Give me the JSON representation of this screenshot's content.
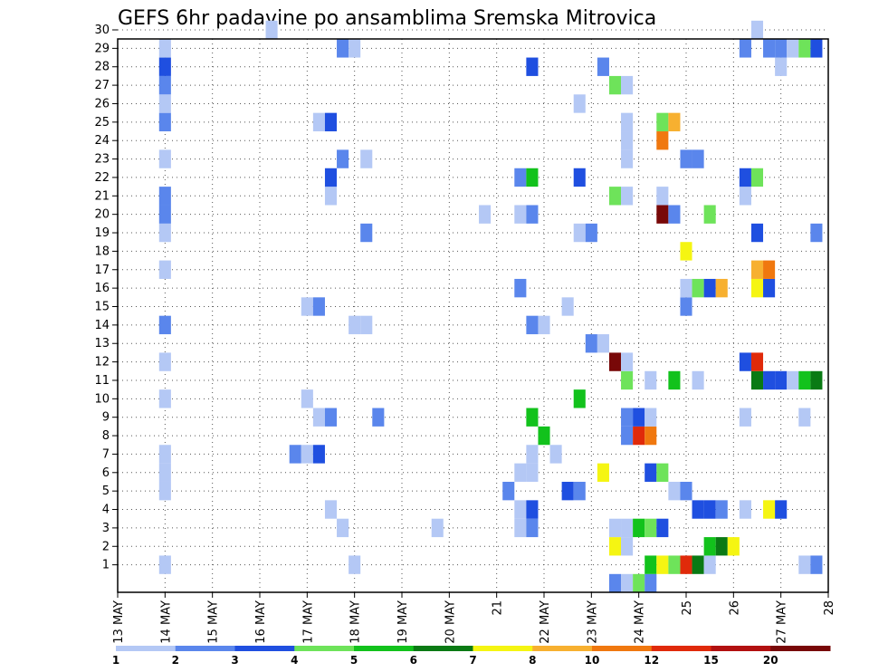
{
  "chart_data": {
    "type": "heatmap",
    "title": "GEFS 6hr padavine po ansamblima Sremska Mitrovica",
    "y_members": [
      1,
      2,
      3,
      4,
      5,
      6,
      7,
      8,
      9,
      10,
      11,
      12,
      13,
      14,
      15,
      16,
      17,
      18,
      19,
      20,
      21,
      22,
      23,
      24,
      25,
      26,
      27,
      28,
      29,
      30
    ],
    "y_tick_labels": [
      "1",
      "2",
      "3",
      "4",
      "5",
      "6",
      "7",
      "8",
      "9",
      "10",
      "11",
      "12",
      "13",
      "14",
      "15",
      "16",
      "17",
      "18",
      "19",
      "20",
      "21",
      "22",
      "23",
      "24",
      "25",
      "26",
      "27",
      "28",
      "29",
      "30"
    ],
    "x_tick_labels": [
      "13 MAY",
      "14 MAY",
      "15 MAY",
      "16 MAY",
      "17 MAY",
      "18 MAY",
      "19 MAY",
      "20 MAY",
      "21",
      "22 MAY",
      "23 MAY",
      "24 MAY",
      "25",
      "26",
      "27 MAY",
      "28"
    ],
    "x_days": [
      13,
      14,
      15,
      16,
      17,
      18,
      19,
      20,
      21,
      22,
      23,
      24,
      25,
      26,
      27,
      28
    ],
    "colorbar": {
      "labels": [
        "1",
        "2",
        "3",
        "4",
        "5",
        "6",
        "7",
        "8",
        "10",
        "12",
        "15",
        "20"
      ],
      "colors": [
        "#b4c8f5",
        "#5a86ec",
        "#1f4fe0",
        "#6ee35a",
        "#12c21c",
        "#0a7a14",
        "#f5f512",
        "#f7b030",
        "#f0780f",
        "#e02a0a",
        "#b21010",
        "#780808"
      ]
    },
    "cells": [
      {
        "day": 14.0,
        "member": 1,
        "bin": 0
      },
      {
        "day": 14.0,
        "member": 5,
        "bin": 0
      },
      {
        "day": 14.0,
        "member": 6,
        "bin": 0
      },
      {
        "day": 14.0,
        "member": 7,
        "bin": 0
      },
      {
        "day": 14.0,
        "member": 10,
        "bin": 0
      },
      {
        "day": 14.0,
        "member": 12,
        "bin": 0
      },
      {
        "day": 14.0,
        "member": 14,
        "bin": 1
      },
      {
        "day": 14.0,
        "member": 17,
        "bin": 0
      },
      {
        "day": 14.0,
        "member": 19,
        "bin": 0
      },
      {
        "day": 14.0,
        "member": 20,
        "bin": 1
      },
      {
        "day": 14.0,
        "member": 21,
        "bin": 1
      },
      {
        "day": 14.0,
        "member": 23,
        "bin": 0
      },
      {
        "day": 14.0,
        "member": 25,
        "bin": 1
      },
      {
        "day": 14.0,
        "member": 26,
        "bin": 0
      },
      {
        "day": 14.0,
        "member": 27,
        "bin": 1
      },
      {
        "day": 14.0,
        "member": 28,
        "bin": 2
      },
      {
        "day": 14.0,
        "member": 29,
        "bin": 0
      },
      {
        "day": 16.25,
        "member": 30,
        "bin": 0
      },
      {
        "day": 16.75,
        "member": 7,
        "bin": 1
      },
      {
        "day": 17.0,
        "member": 7,
        "bin": 0
      },
      {
        "day": 17.25,
        "member": 7,
        "bin": 2
      },
      {
        "day": 17.0,
        "member": 10,
        "bin": 0
      },
      {
        "day": 17.25,
        "member": 9,
        "bin": 0
      },
      {
        "day": 17.5,
        "member": 9,
        "bin": 1
      },
      {
        "day": 17.0,
        "member": 15,
        "bin": 0
      },
      {
        "day": 17.25,
        "member": 15,
        "bin": 1
      },
      {
        "day": 17.25,
        "member": 25,
        "bin": 0
      },
      {
        "day": 17.5,
        "member": 25,
        "bin": 2
      },
      {
        "day": 17.5,
        "member": 4,
        "bin": 0
      },
      {
        "day": 17.5,
        "member": 21,
        "bin": 0
      },
      {
        "day": 17.5,
        "member": 22,
        "bin": 2
      },
      {
        "day": 17.75,
        "member": 3,
        "bin": 0
      },
      {
        "day": 17.75,
        "member": 23,
        "bin": 1
      },
      {
        "day": 17.75,
        "member": 29,
        "bin": 1
      },
      {
        "day": 18.0,
        "member": 29,
        "bin": 0
      },
      {
        "day": 18.0,
        "member": 1,
        "bin": 0
      },
      {
        "day": 18.0,
        "member": 14,
        "bin": 0
      },
      {
        "day": 18.25,
        "member": 14,
        "bin": 0
      },
      {
        "day": 18.25,
        "member": 19,
        "bin": 1
      },
      {
        "day": 18.25,
        "member": 23,
        "bin": 0
      },
      {
        "day": 18.5,
        "member": 9,
        "bin": 1
      },
      {
        "day": 19.75,
        "member": 3,
        "bin": 0
      },
      {
        "day": 20.75,
        "member": 20,
        "bin": 0
      },
      {
        "day": 21.25,
        "member": 5,
        "bin": 1
      },
      {
        "day": 21.5,
        "member": 3,
        "bin": 0
      },
      {
        "day": 21.5,
        "member": 4,
        "bin": 0
      },
      {
        "day": 21.5,
        "member": 6,
        "bin": 0
      },
      {
        "day": 21.5,
        "member": 16,
        "bin": 1
      },
      {
        "day": 21.5,
        "member": 20,
        "bin": 0
      },
      {
        "day": 21.5,
        "member": 22,
        "bin": 1
      },
      {
        "day": 21.75,
        "member": 3,
        "bin": 1
      },
      {
        "day": 21.75,
        "member": 4,
        "bin": 2
      },
      {
        "day": 21.75,
        "member": 6,
        "bin": 0
      },
      {
        "day": 21.75,
        "member": 7,
        "bin": 0
      },
      {
        "day": 21.75,
        "member": 9,
        "bin": 4
      },
      {
        "day": 21.75,
        "member": 14,
        "bin": 1
      },
      {
        "day": 21.75,
        "member": 20,
        "bin": 1
      },
      {
        "day": 21.75,
        "member": 22,
        "bin": 4
      },
      {
        "day": 21.75,
        "member": 28,
        "bin": 2
      },
      {
        "day": 22.0,
        "member": 8,
        "bin": 4
      },
      {
        "day": 22.0,
        "member": 14,
        "bin": 0
      },
      {
        "day": 22.25,
        "member": 7,
        "bin": 0
      },
      {
        "day": 22.5,
        "member": 15,
        "bin": 0
      },
      {
        "day": 22.5,
        "member": 5,
        "bin": 2
      },
      {
        "day": 22.75,
        "member": 5,
        "bin": 1
      },
      {
        "day": 22.75,
        "member": 10,
        "bin": 4
      },
      {
        "day": 22.75,
        "member": 19,
        "bin": 0
      },
      {
        "day": 22.75,
        "member": 22,
        "bin": 2
      },
      {
        "day": 22.75,
        "member": 26,
        "bin": 0
      },
      {
        "day": 23.0,
        "member": 13,
        "bin": 1
      },
      {
        "day": 23.0,
        "member": 19,
        "bin": 1
      },
      {
        "day": 23.25,
        "member": 6,
        "bin": 6
      },
      {
        "day": 23.25,
        "member": 13,
        "bin": 0
      },
      {
        "day": 23.25,
        "member": 28,
        "bin": 1
      },
      {
        "day": 23.5,
        "member": 0,
        "bin": 1
      },
      {
        "day": 23.5,
        "member": 2,
        "bin": 6
      },
      {
        "day": 23.5,
        "member": 3,
        "bin": 0
      },
      {
        "day": 23.5,
        "member": 12,
        "bin": 11
      },
      {
        "day": 23.5,
        "member": 21,
        "bin": 3
      },
      {
        "day": 23.5,
        "member": 27,
        "bin": 3
      },
      {
        "day": 23.75,
        "member": 0,
        "bin": 0
      },
      {
        "day": 23.75,
        "member": 2,
        "bin": 0
      },
      {
        "day": 23.75,
        "member": 3,
        "bin": 0
      },
      {
        "day": 23.75,
        "member": 8,
        "bin": 1
      },
      {
        "day": 23.75,
        "member": 9,
        "bin": 1
      },
      {
        "day": 23.75,
        "member": 11,
        "bin": 3
      },
      {
        "day": 23.75,
        "member": 12,
        "bin": 0
      },
      {
        "day": 23.75,
        "member": 21,
        "bin": 0
      },
      {
        "day": 23.75,
        "member": 23,
        "bin": 0
      },
      {
        "day": 23.75,
        "member": 24,
        "bin": 0
      },
      {
        "day": 23.75,
        "member": 25,
        "bin": 0
      },
      {
        "day": 23.75,
        "member": 27,
        "bin": 0
      },
      {
        "day": 24.0,
        "member": 0,
        "bin": 3
      },
      {
        "day": 24.0,
        "member": 3,
        "bin": 4
      },
      {
        "day": 24.0,
        "member": 8,
        "bin": 9
      },
      {
        "day": 24.0,
        "member": 9,
        "bin": 2
      },
      {
        "day": 24.25,
        "member": 0,
        "bin": 1
      },
      {
        "day": 24.25,
        "member": 1,
        "bin": 4
      },
      {
        "day": 24.25,
        "member": 3,
        "bin": 3
      },
      {
        "day": 24.25,
        "member": 6,
        "bin": 2
      },
      {
        "day": 24.25,
        "member": 8,
        "bin": 8
      },
      {
        "day": 24.25,
        "member": 9,
        "bin": 0
      },
      {
        "day": 24.25,
        "member": 11,
        "bin": 0
      },
      {
        "day": 24.5,
        "member": 1,
        "bin": 6
      },
      {
        "day": 24.5,
        "member": 3,
        "bin": 2
      },
      {
        "day": 24.5,
        "member": 6,
        "bin": 3
      },
      {
        "day": 24.5,
        "member": 20,
        "bin": 11
      },
      {
        "day": 24.5,
        "member": 21,
        "bin": 0
      },
      {
        "day": 24.5,
        "member": 24,
        "bin": 8
      },
      {
        "day": 24.5,
        "member": 25,
        "bin": 3
      },
      {
        "day": 24.75,
        "member": 1,
        "bin": 3
      },
      {
        "day": 24.75,
        "member": 5,
        "bin": 0
      },
      {
        "day": 24.75,
        "member": 11,
        "bin": 4
      },
      {
        "day": 24.75,
        "member": 20,
        "bin": 1
      },
      {
        "day": 24.75,
        "member": 25,
        "bin": 7
      },
      {
        "day": 25.0,
        "member": 1,
        "bin": 9
      },
      {
        "day": 25.0,
        "member": 5,
        "bin": 1
      },
      {
        "day": 25.0,
        "member": 15,
        "bin": 1
      },
      {
        "day": 25.0,
        "member": 16,
        "bin": 0
      },
      {
        "day": 25.0,
        "member": 18,
        "bin": 6
      },
      {
        "day": 25.0,
        "member": 23,
        "bin": 1
      },
      {
        "day": 25.25,
        "member": 1,
        "bin": 5
      },
      {
        "day": 25.25,
        "member": 4,
        "bin": 2
      },
      {
        "day": 25.25,
        "member": 11,
        "bin": 0
      },
      {
        "day": 25.25,
        "member": 16,
        "bin": 3
      },
      {
        "day": 25.25,
        "member": 23,
        "bin": 1
      },
      {
        "day": 25.5,
        "member": 1,
        "bin": 0
      },
      {
        "day": 25.5,
        "member": 2,
        "bin": 4
      },
      {
        "day": 25.5,
        "member": 4,
        "bin": 2
      },
      {
        "day": 25.5,
        "member": 16,
        "bin": 2
      },
      {
        "day": 25.5,
        "member": 20,
        "bin": 3
      },
      {
        "day": 25.75,
        "member": 2,
        "bin": 5
      },
      {
        "day": 25.75,
        "member": 4,
        "bin": 1
      },
      {
        "day": 25.75,
        "member": 16,
        "bin": 7
      },
      {
        "day": 26.0,
        "member": 2,
        "bin": 6
      },
      {
        "day": 26.25,
        "member": 4,
        "bin": 0
      },
      {
        "day": 26.25,
        "member": 9,
        "bin": 0
      },
      {
        "day": 26.25,
        "member": 12,
        "bin": 2
      },
      {
        "day": 26.25,
        "member": 21,
        "bin": 0
      },
      {
        "day": 26.25,
        "member": 22,
        "bin": 2
      },
      {
        "day": 26.25,
        "member": 29,
        "bin": 1
      },
      {
        "day": 26.5,
        "member": 11,
        "bin": 5
      },
      {
        "day": 26.5,
        "member": 12,
        "bin": 9
      },
      {
        "day": 26.5,
        "member": 16,
        "bin": 6
      },
      {
        "day": 26.5,
        "member": 17,
        "bin": 7
      },
      {
        "day": 26.5,
        "member": 19,
        "bin": 2
      },
      {
        "day": 26.5,
        "member": 22,
        "bin": 3
      },
      {
        "day": 26.5,
        "member": 30,
        "bin": 0
      },
      {
        "day": 26.75,
        "member": 4,
        "bin": 6
      },
      {
        "day": 26.75,
        "member": 11,
        "bin": 2
      },
      {
        "day": 26.75,
        "member": 16,
        "bin": 2
      },
      {
        "day": 26.75,
        "member": 17,
        "bin": 8
      },
      {
        "day": 26.75,
        "member": 29,
        "bin": 1
      },
      {
        "day": 27.0,
        "member": 4,
        "bin": 2
      },
      {
        "day": 27.0,
        "member": 11,
        "bin": 2
      },
      {
        "day": 27.0,
        "member": 28,
        "bin": 0
      },
      {
        "day": 27.0,
        "member": 29,
        "bin": 1
      },
      {
        "day": 27.25,
        "member": 11,
        "bin": 0
      },
      {
        "day": 27.25,
        "member": 29,
        "bin": 0
      },
      {
        "day": 27.5,
        "member": 1,
        "bin": 0
      },
      {
        "day": 27.5,
        "member": 9,
        "bin": 0
      },
      {
        "day": 27.5,
        "member": 11,
        "bin": 4
      },
      {
        "day": 27.5,
        "member": 29,
        "bin": 3
      },
      {
        "day": 27.75,
        "member": 1,
        "bin": 1
      },
      {
        "day": 27.75,
        "member": 11,
        "bin": 5
      },
      {
        "day": 27.75,
        "member": 19,
        "bin": 1
      },
      {
        "day": 27.75,
        "member": 29,
        "bin": 2
      }
    ]
  }
}
